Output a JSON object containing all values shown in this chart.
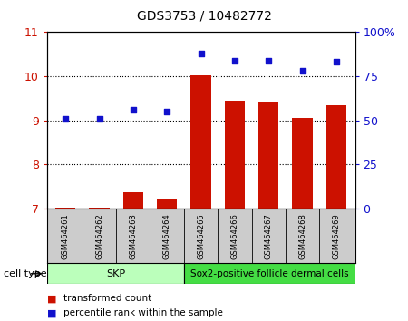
{
  "title": "GDS3753 / 10482772",
  "samples": [
    "GSM464261",
    "GSM464262",
    "GSM464263",
    "GSM464264",
    "GSM464265",
    "GSM464266",
    "GSM464267",
    "GSM464268",
    "GSM464269"
  ],
  "transformed_count": [
    7.02,
    7.02,
    7.38,
    7.22,
    10.02,
    9.45,
    9.42,
    9.05,
    9.35
  ],
  "percentile_rank_pct": [
    51,
    51,
    56,
    55,
    88,
    84,
    84,
    78,
    83
  ],
  "left_ylim": [
    7,
    11
  ],
  "left_yticks": [
    7,
    8,
    9,
    10,
    11
  ],
  "right_ylim": [
    0,
    100
  ],
  "right_yticks": [
    0,
    25,
    50,
    75,
    100
  ],
  "right_yticklabels": [
    "0",
    "25",
    "50",
    "75",
    "100%"
  ],
  "bar_color": "#cc1100",
  "dot_color": "#1111cc",
  "bar_width": 0.6,
  "skp_color": "#bbffbb",
  "sox2_color": "#44dd44",
  "sample_bg_color": "#cccccc",
  "cell_type_label": "cell type",
  "legend_items": [
    {
      "color": "#cc1100",
      "label": "transformed count"
    },
    {
      "color": "#1111cc",
      "label": "percentile rank within the sample"
    }
  ],
  "left_tick_color": "#cc1100",
  "right_tick_color": "#1111cc"
}
